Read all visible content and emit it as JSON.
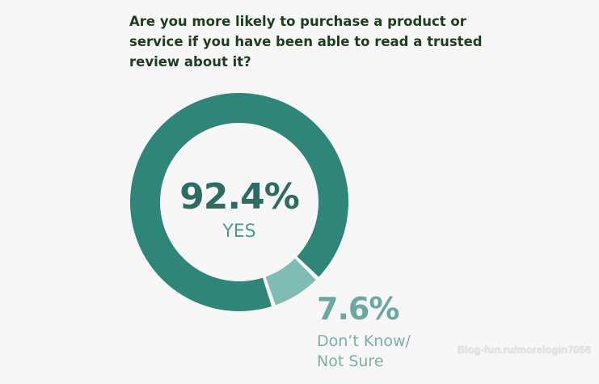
{
  "chart_data": {
    "type": "pie",
    "title": "Are you more likely to purchase a product or service if you have been able to read a trusted review about it?",
    "slices": [
      {
        "label": "YES",
        "value": 92.4,
        "display": "92.4%",
        "color": "#2e8578"
      },
      {
        "label": "Don’t Know/\nNot Sure",
        "value": 7.6,
        "display": "7.6%",
        "color": "#7fbcb3"
      }
    ]
  },
  "watermark": "Blog-fun.ru/morelogin7056"
}
